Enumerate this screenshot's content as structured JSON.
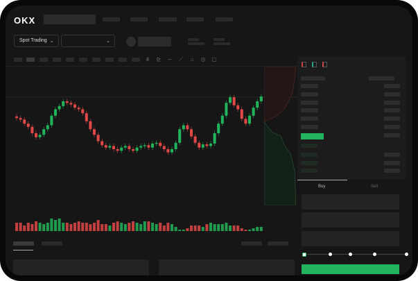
{
  "header": {
    "logo": "OKX"
  },
  "toolbar": {
    "market_type": "Spot Trading",
    "pair_select": ""
  },
  "trade": {
    "tabs": [
      {
        "label": "Buy",
        "active": true
      },
      {
        "label": "Sell",
        "active": false
      }
    ],
    "leverage_steps": 5,
    "selected_step": 0
  },
  "colors": {
    "up": "#22b45c",
    "down": "#e04848",
    "background": "#161616"
  },
  "chart_data": {
    "type": "candlestick",
    "closes": [
      59,
      57,
      52,
      48,
      40,
      35,
      38,
      45,
      50,
      62,
      70,
      74,
      80,
      78,
      76,
      72,
      70,
      65,
      55,
      45,
      38,
      30,
      25,
      22,
      24,
      20,
      18,
      22,
      24,
      20,
      18,
      22,
      24,
      25,
      22,
      27,
      28,
      24,
      20,
      16,
      20,
      28,
      45,
      50,
      45,
      36,
      28,
      22,
      26,
      24,
      27,
      40,
      52,
      62,
      78,
      85,
      75,
      70,
      58,
      52,
      62,
      72,
      80,
      86
    ],
    "volumes": [
      6,
      6,
      4,
      6,
      5,
      7,
      6,
      5,
      6,
      9,
      8,
      9,
      6,
      6,
      5,
      6,
      7,
      6,
      6,
      5,
      6,
      8,
      5,
      5,
      4,
      6,
      7,
      6,
      5,
      6,
      7,
      6,
      5,
      7,
      7,
      6,
      5,
      6,
      4,
      6,
      5,
      3,
      1,
      1,
      2,
      4,
      4,
      4,
      3,
      5,
      6,
      5,
      5,
      5,
      6,
      4,
      4,
      4,
      2,
      1,
      1,
      2,
      3,
      3
    ]
  }
}
